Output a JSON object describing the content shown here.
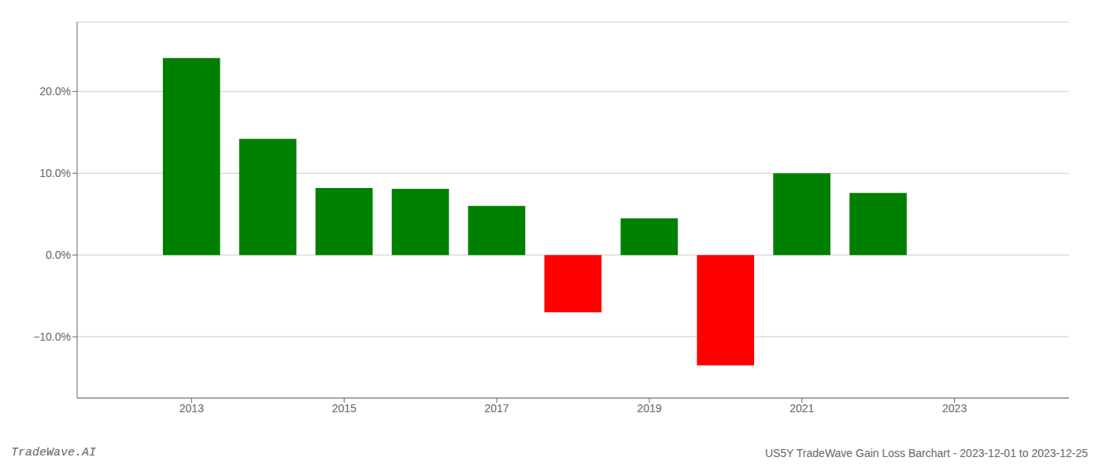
{
  "chart_data": {
    "type": "bar",
    "x": [
      2013,
      2014,
      2015,
      2016,
      2017,
      2018,
      2019,
      2020,
      2021,
      2022
    ],
    "values": [
      0.241,
      0.142,
      0.082,
      0.081,
      0.06,
      -0.07,
      0.045,
      -0.135,
      0.1,
      0.076
    ],
    "colors": [
      "#008000",
      "#008000",
      "#008000",
      "#008000",
      "#008000",
      "#ff0000",
      "#008000",
      "#ff0000",
      "#008000",
      "#008000"
    ],
    "xlim": [
      2011.5,
      2024.5
    ],
    "xticks": [
      2013,
      2015,
      2017,
      2019,
      2021,
      2023
    ],
    "ylim": [
      -0.175,
      0.285
    ],
    "yticks": [
      {
        "value": -0.1,
        "label": "−10.0%"
      },
      {
        "value": 0.0,
        "label": "0.0%"
      },
      {
        "value": 0.1,
        "label": "10.0%"
      },
      {
        "value": 0.2,
        "label": "20.0%"
      }
    ],
    "grid": true,
    "annotations": [
      "TradeWave.AI",
      "US5Y TradeWave Gain Loss Barchart - 2023-12-01 to 2023-12-25"
    ]
  }
}
